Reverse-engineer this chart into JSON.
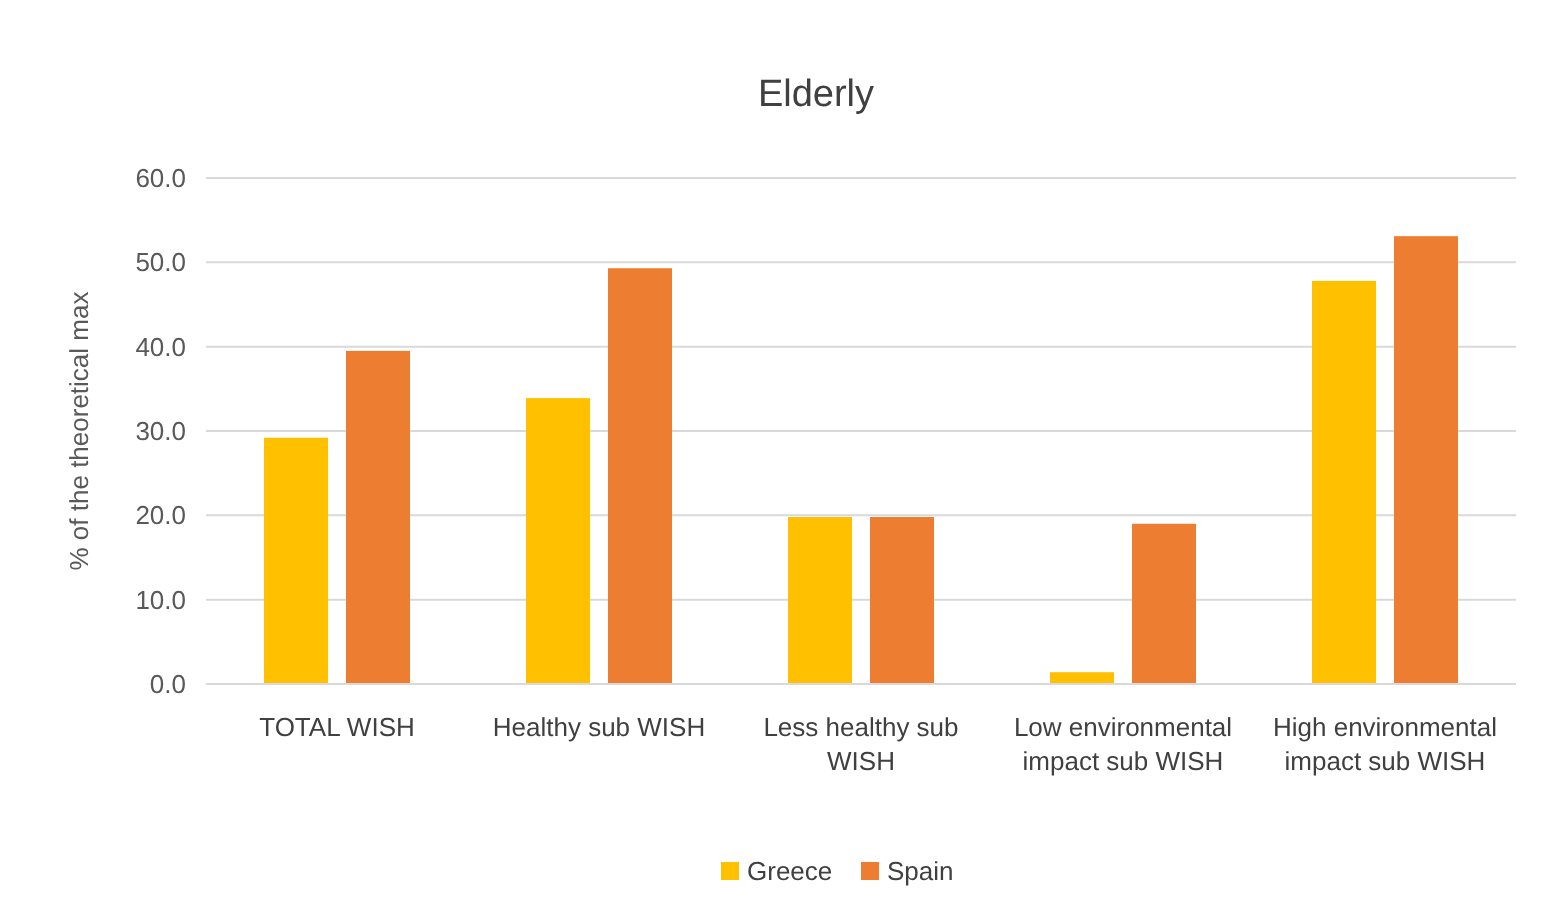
{
  "chart_data": {
    "type": "bar",
    "title": "Elderly",
    "ylabel": "% of the theoretical max",
    "categories": [
      "TOTAL WISH",
      "Healthy sub WISH",
      "Less healthy sub WISH",
      "Low environmental impact sub WISH",
      "High environmental impact sub WISH"
    ],
    "series": [
      {
        "name": "Greece",
        "color": "#ffc000",
        "values": [
          29.2,
          33.9,
          19.8,
          1.4,
          47.8
        ]
      },
      {
        "name": "Spain",
        "color": "#ed7d31",
        "values": [
          39.5,
          49.3,
          19.8,
          19.0,
          53.1
        ]
      }
    ],
    "ylim": [
      0,
      60
    ],
    "yticks": [
      {
        "value": 0,
        "label": "0.0"
      },
      {
        "value": 10,
        "label": "10.0"
      },
      {
        "value": 20,
        "label": "20.0"
      },
      {
        "value": 30,
        "label": "30.0"
      },
      {
        "value": 40,
        "label": "40.0"
      },
      {
        "value": 50,
        "label": "50.0"
      },
      {
        "value": 60,
        "label": "60.0"
      }
    ],
    "grid": "y",
    "legend": "bottom"
  }
}
